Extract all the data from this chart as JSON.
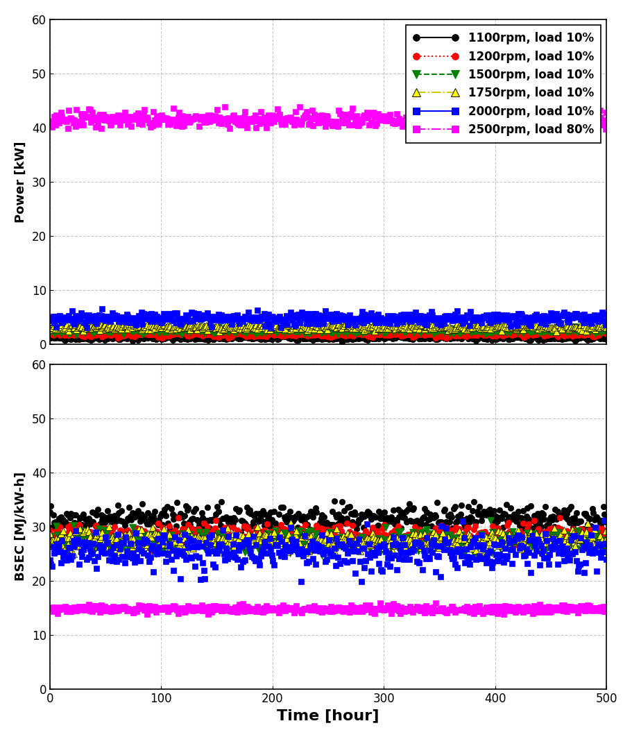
{
  "series": [
    {
      "label": "1100rpm, load 10%",
      "color": "black",
      "linestyle": "-",
      "marker": "o",
      "markersize": 6,
      "power_mean": 1.2,
      "power_std": 0.25,
      "bsec_mean": 31.5,
      "bsec_std": 1.2,
      "markerfacecolor": "black",
      "markeredgecolor": "black",
      "linewidth": 0.3
    },
    {
      "label": "1200rpm, load 10%",
      "color": "red",
      "linestyle": ":",
      "marker": "o",
      "markersize": 6,
      "power_mean": 1.8,
      "power_std": 0.25,
      "bsec_mean": 28.5,
      "bsec_std": 1.0,
      "markerfacecolor": "red",
      "markeredgecolor": "red",
      "linewidth": 0.3
    },
    {
      "label": "1500rpm, load 10%",
      "color": "green",
      "linestyle": "--",
      "marker": "v",
      "markersize": 7,
      "power_mean": 2.5,
      "power_std": 0.3,
      "bsec_mean": 27.2,
      "bsec_std": 1.0,
      "markerfacecolor": "green",
      "markeredgecolor": "green",
      "linewidth": 0.3
    },
    {
      "label": "1750rpm, load 10%",
      "color": "#cccc00",
      "linestyle": "-.",
      "marker": "^",
      "markersize": 7,
      "power_mean": 3.2,
      "power_std": 0.3,
      "bsec_mean": 27.5,
      "bsec_std": 1.0,
      "markerfacecolor": "#ffff00",
      "markeredgecolor": "black",
      "linewidth": 0.3
    },
    {
      "label": "2000rpm, load 10%",
      "color": "blue",
      "linestyle": "--",
      "marker": "s",
      "markersize": 6,
      "power_mean": 4.8,
      "power_std": 0.6,
      "bsec_mean": 25.5,
      "bsec_std": 1.8,
      "markerfacecolor": "blue",
      "markeredgecolor": "blue",
      "linewidth": 0.3
    },
    {
      "label": "2500rpm, load 80%",
      "color": "magenta",
      "linestyle": "-.",
      "marker": "s",
      "markersize": 6,
      "power_mean": 41.5,
      "power_std": 0.8,
      "bsec_mean": 14.8,
      "bsec_std": 0.35,
      "markerfacecolor": "magenta",
      "markeredgecolor": "magenta",
      "linewidth": 0.3
    }
  ],
  "n_points": 500,
  "x_max": 500,
  "power_ylim": [
    0,
    60
  ],
  "bsec_ylim": [
    0,
    60
  ],
  "power_yticks": [
    0,
    10,
    20,
    30,
    40,
    50,
    60
  ],
  "bsec_yticks": [
    0,
    10,
    20,
    30,
    40,
    50,
    60
  ],
  "xticks": [
    0,
    100,
    200,
    300,
    400,
    500
  ],
  "power_ylabel": "Power [kW]",
  "bsec_ylabel": "BSEC [MJ/kW-h]",
  "xlabel": "Time [hour]",
  "background_color": "white",
  "grid_color": "#b0b0b0",
  "grid_linestyle": "--",
  "legend_fontsize": 12,
  "ylabel_fontsize": 13,
  "xlabel_fontsize": 16,
  "tick_fontsize": 12
}
